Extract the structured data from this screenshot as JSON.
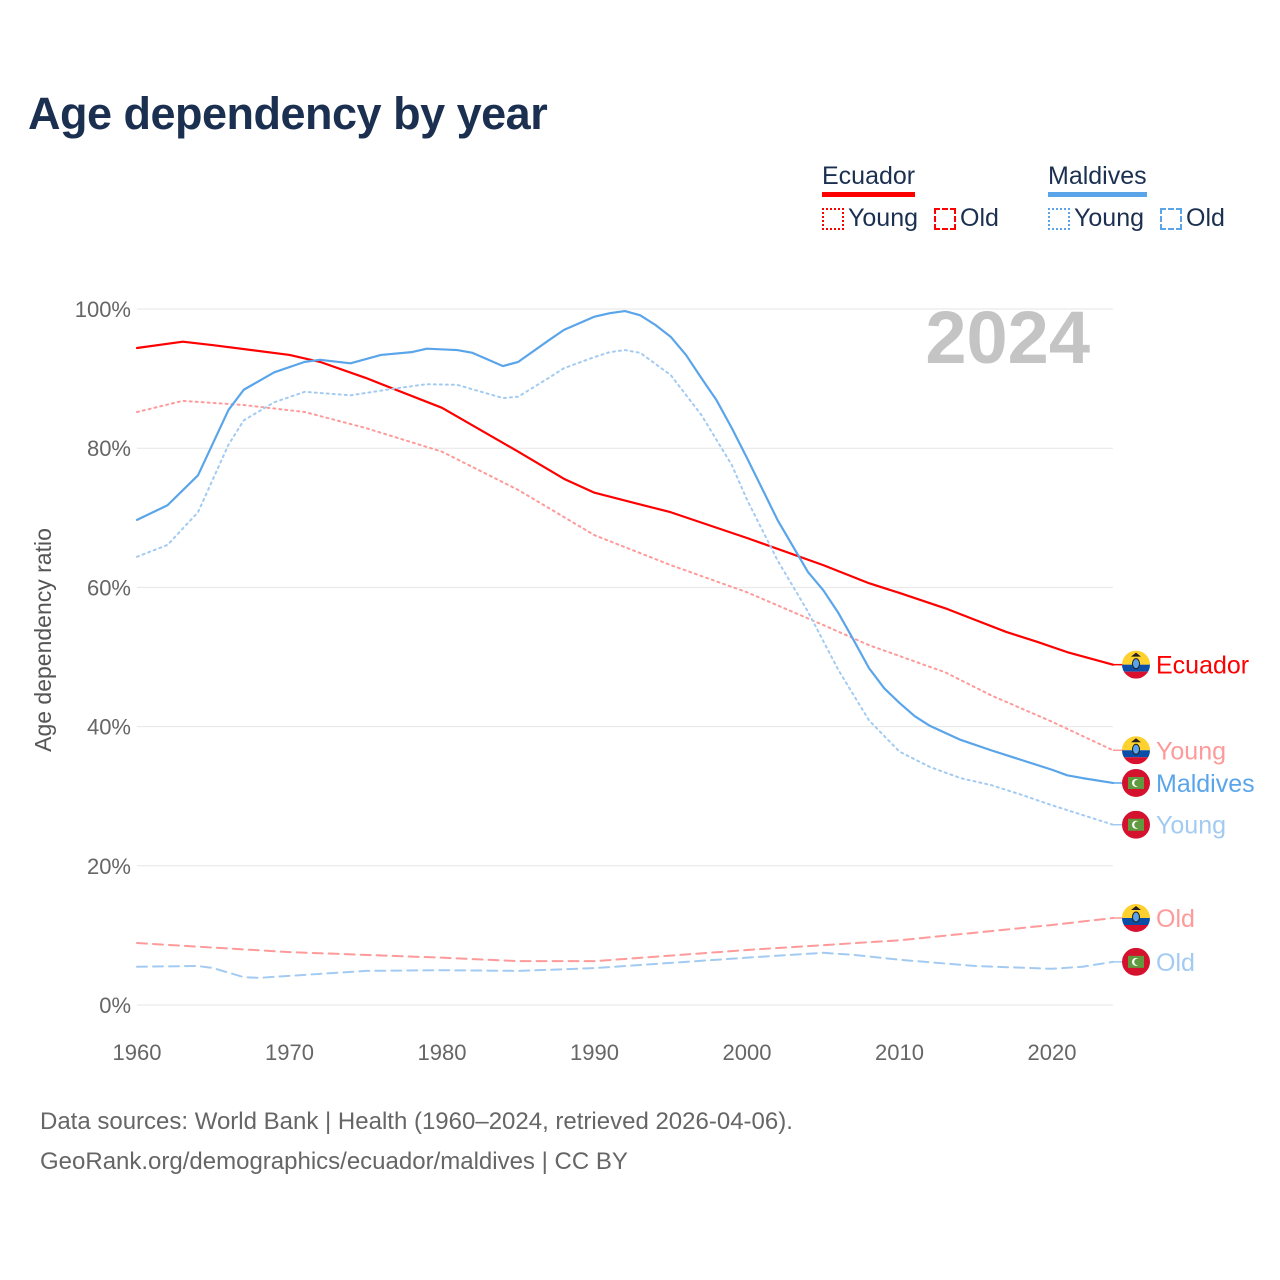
{
  "title": "Age dependency by year",
  "year_watermark": "2024",
  "legend": {
    "groups": [
      {
        "name": "Ecuador",
        "color": "#ff0000",
        "items": [
          {
            "label": "Young",
            "style": "dotted"
          },
          {
            "label": "Old",
            "style": "dashed"
          }
        ]
      },
      {
        "name": "Maldives",
        "color": "#5aa5ea",
        "items": [
          {
            "label": "Young",
            "style": "dotted"
          },
          {
            "label": "Old",
            "style": "dashed"
          }
        ]
      }
    ]
  },
  "footer": {
    "line1": "Data sources: World Bank | Health (1960–2024, retrieved 2026-04-06).",
    "line2": "GeoRank.org/demographics/ecuador/maldives | CC BY"
  },
  "chart_data": {
    "type": "line",
    "title": "Age dependency by year",
    "xlabel": "",
    "ylabel": "Age dependency ratio",
    "xlim": [
      1960,
      2024
    ],
    "ylim": [
      0,
      100
    ],
    "x_ticks": [
      1960,
      1970,
      1980,
      1990,
      2000,
      2010,
      2020
    ],
    "y_ticks": [
      0,
      20,
      40,
      60,
      80,
      100
    ],
    "y_tick_labels": [
      "0%",
      "20%",
      "40%",
      "60%",
      "80%",
      "100%"
    ],
    "grid": true,
    "series": [
      {
        "name": "Ecuador",
        "end_label": "Ecuador",
        "flag": "ecuador",
        "color": "#ff0000",
        "dash": "solid",
        "width": 2.2,
        "points": [
          [
            1960,
            94.4
          ],
          [
            1963,
            95.3
          ],
          [
            1965,
            94.8
          ],
          [
            1970,
            93.4
          ],
          [
            1972,
            92.4
          ],
          [
            1975,
            90.1
          ],
          [
            1980,
            85.8
          ],
          [
            1985,
            79.5
          ],
          [
            1988,
            75.6
          ],
          [
            1990,
            73.6
          ],
          [
            1995,
            70.8
          ],
          [
            2000,
            67.1
          ],
          [
            2005,
            63.2
          ],
          [
            2008,
            60.6
          ],
          [
            2010,
            59.2
          ],
          [
            2013,
            57.0
          ],
          [
            2015,
            55.3
          ],
          [
            2017,
            53.6
          ],
          [
            2019,
            52.2
          ],
          [
            2021,
            50.7
          ],
          [
            2024,
            48.9
          ]
        ]
      },
      {
        "name": "Ecuador Young",
        "end_label": "Young",
        "flag": "ecuador",
        "color": "#ff9a9a",
        "dash": "dotted",
        "width": 2,
        "points": [
          [
            1960,
            85.2
          ],
          [
            1963,
            86.8
          ],
          [
            1967,
            86.2
          ],
          [
            1971,
            85.2
          ],
          [
            1975,
            82.9
          ],
          [
            1980,
            79.5
          ],
          [
            1985,
            74.0
          ],
          [
            1990,
            67.5
          ],
          [
            1995,
            63.2
          ],
          [
            2000,
            59.3
          ],
          [
            2005,
            54.6
          ],
          [
            2008,
            51.7
          ],
          [
            2013,
            47.8
          ],
          [
            2016,
            44.5
          ],
          [
            2020,
            40.7
          ],
          [
            2024,
            36.6
          ]
        ]
      },
      {
        "name": "Ecuador Old",
        "end_label": "Old",
        "flag": "ecuador",
        "color": "#ff9a9a",
        "dash": "dashed",
        "width": 2,
        "points": [
          [
            1960,
            8.9
          ],
          [
            1970,
            7.6
          ],
          [
            1980,
            6.8
          ],
          [
            1985,
            6.3
          ],
          [
            1990,
            6.3
          ],
          [
            2000,
            7.9
          ],
          [
            2010,
            9.3
          ],
          [
            2020,
            11.5
          ],
          [
            2024,
            12.5
          ]
        ]
      },
      {
        "name": "Maldives",
        "end_label": "Maldives",
        "flag": "maldives",
        "color": "#5aa5ea",
        "dash": "solid",
        "width": 2.2,
        "points": [
          [
            1960,
            69.7
          ],
          [
            1962,
            71.8
          ],
          [
            1964,
            76.1
          ],
          [
            1966,
            85.5
          ],
          [
            1967,
            88.4
          ],
          [
            1969,
            90.9
          ],
          [
            1971,
            92.4
          ],
          [
            1972,
            92.7
          ],
          [
            1974,
            92.2
          ],
          [
            1976,
            93.4
          ],
          [
            1978,
            93.8
          ],
          [
            1979,
            94.3
          ],
          [
            1981,
            94.1
          ],
          [
            1982,
            93.7
          ],
          [
            1984,
            91.8
          ],
          [
            1985,
            92.4
          ],
          [
            1987,
            95.5
          ],
          [
            1988,
            97.0
          ],
          [
            1990,
            98.9
          ],
          [
            1991,
            99.4
          ],
          [
            1992,
            99.7
          ],
          [
            1993,
            99.1
          ],
          [
            1994,
            97.7
          ],
          [
            1995,
            96.0
          ],
          [
            1996,
            93.4
          ],
          [
            1997,
            90.1
          ],
          [
            1998,
            86.9
          ],
          [
            1999,
            82.9
          ],
          [
            2000,
            78.6
          ],
          [
            2002,
            69.7
          ],
          [
            2004,
            62.2
          ],
          [
            2005,
            59.6
          ],
          [
            2006,
            56.3
          ],
          [
            2007,
            52.4
          ],
          [
            2008,
            48.4
          ],
          [
            2009,
            45.5
          ],
          [
            2010,
            43.4
          ],
          [
            2011,
            41.5
          ],
          [
            2012,
            40.1
          ],
          [
            2014,
            38.1
          ],
          [
            2016,
            36.6
          ],
          [
            2018,
            35.2
          ],
          [
            2020,
            33.8
          ],
          [
            2021,
            33.0
          ],
          [
            2022,
            32.6
          ],
          [
            2024,
            31.9
          ]
        ]
      },
      {
        "name": "Maldives Young",
        "end_label": "Young",
        "flag": "maldives",
        "color": "#a3cbf2",
        "dash": "dotted",
        "width": 2,
        "points": [
          [
            1960,
            64.4
          ],
          [
            1962,
            66.1
          ],
          [
            1964,
            70.8
          ],
          [
            1966,
            80.5
          ],
          [
            1967,
            84.0
          ],
          [
            1969,
            86.6
          ],
          [
            1971,
            88.1
          ],
          [
            1974,
            87.6
          ],
          [
            1977,
            88.6
          ],
          [
            1979,
            89.2
          ],
          [
            1981,
            89.1
          ],
          [
            1984,
            87.2
          ],
          [
            1985,
            87.4
          ],
          [
            1987,
            90.1
          ],
          [
            1988,
            91.5
          ],
          [
            1990,
            93.1
          ],
          [
            1991,
            93.8
          ],
          [
            1992,
            94.1
          ],
          [
            1993,
            93.7
          ],
          [
            1995,
            90.5
          ],
          [
            1997,
            84.8
          ],
          [
            1999,
            77.6
          ],
          [
            2000,
            72.6
          ],
          [
            2002,
            63.9
          ],
          [
            2004,
            56.5
          ],
          [
            2006,
            48.1
          ],
          [
            2008,
            40.9
          ],
          [
            2010,
            36.4
          ],
          [
            2012,
            34.2
          ],
          [
            2014,
            32.6
          ],
          [
            2016,
            31.6
          ],
          [
            2018,
            30.2
          ],
          [
            2020,
            28.7
          ],
          [
            2022,
            27.3
          ],
          [
            2024,
            25.9
          ]
        ]
      },
      {
        "name": "Maldives Old",
        "end_label": "Old",
        "flag": "maldives",
        "color": "#a3cbf2",
        "dash": "dashed",
        "width": 2,
        "points": [
          [
            1960,
            5.5
          ],
          [
            1964,
            5.6
          ],
          [
            1965,
            5.3
          ],
          [
            1967,
            4.0
          ],
          [
            1968,
            3.9
          ],
          [
            1975,
            4.9
          ],
          [
            1980,
            5.0
          ],
          [
            1985,
            4.9
          ],
          [
            1990,
            5.3
          ],
          [
            2000,
            6.8
          ],
          [
            2005,
            7.5
          ],
          [
            2007,
            7.2
          ],
          [
            2010,
            6.5
          ],
          [
            2015,
            5.6
          ],
          [
            2020,
            5.2
          ],
          [
            2022,
            5.5
          ],
          [
            2024,
            6.2
          ]
        ]
      }
    ]
  }
}
